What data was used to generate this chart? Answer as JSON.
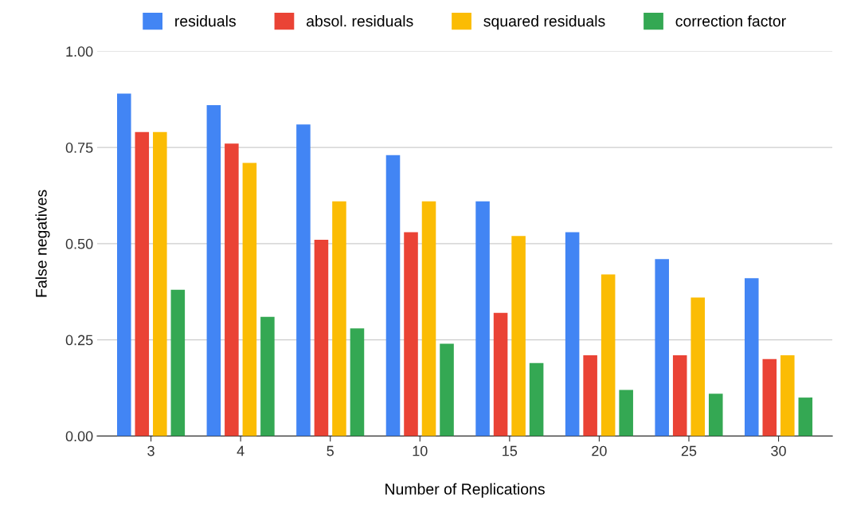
{
  "chart_data": {
    "type": "bar",
    "xlabel": "Number of Replications",
    "ylabel": "False negatives",
    "categories": [
      "3",
      "4",
      "5",
      "10",
      "15",
      "20",
      "25",
      "30"
    ],
    "series": [
      {
        "name": "residuals",
        "color": "#4285f4",
        "values": [
          0.89,
          0.86,
          0.81,
          0.73,
          0.61,
          0.53,
          0.46,
          0.41
        ]
      },
      {
        "name": "absol. residuals",
        "color": "#ea4335",
        "values": [
          0.79,
          0.76,
          0.51,
          0.53,
          0.32,
          0.21,
          0.21,
          0.2
        ]
      },
      {
        "name": "squared residuals",
        "color": "#fbbc04",
        "values": [
          0.79,
          0.71,
          0.61,
          0.61,
          0.52,
          0.42,
          0.36,
          0.21
        ]
      },
      {
        "name": "correction factor",
        "color": "#34a853",
        "values": [
          0.38,
          0.31,
          0.28,
          0.24,
          0.19,
          0.12,
          0.11,
          0.1
        ]
      }
    ],
    "ylim": [
      0,
      1
    ],
    "yticks": [
      {
        "value": 0,
        "label": "0.00"
      },
      {
        "value": 0.25,
        "label": "0.25"
      },
      {
        "value": 0.5,
        "label": "0.50"
      },
      {
        "value": 0.75,
        "label": "0.75"
      },
      {
        "value": 1,
        "label": "1.00"
      }
    ],
    "grid": "y",
    "legend": "top"
  }
}
